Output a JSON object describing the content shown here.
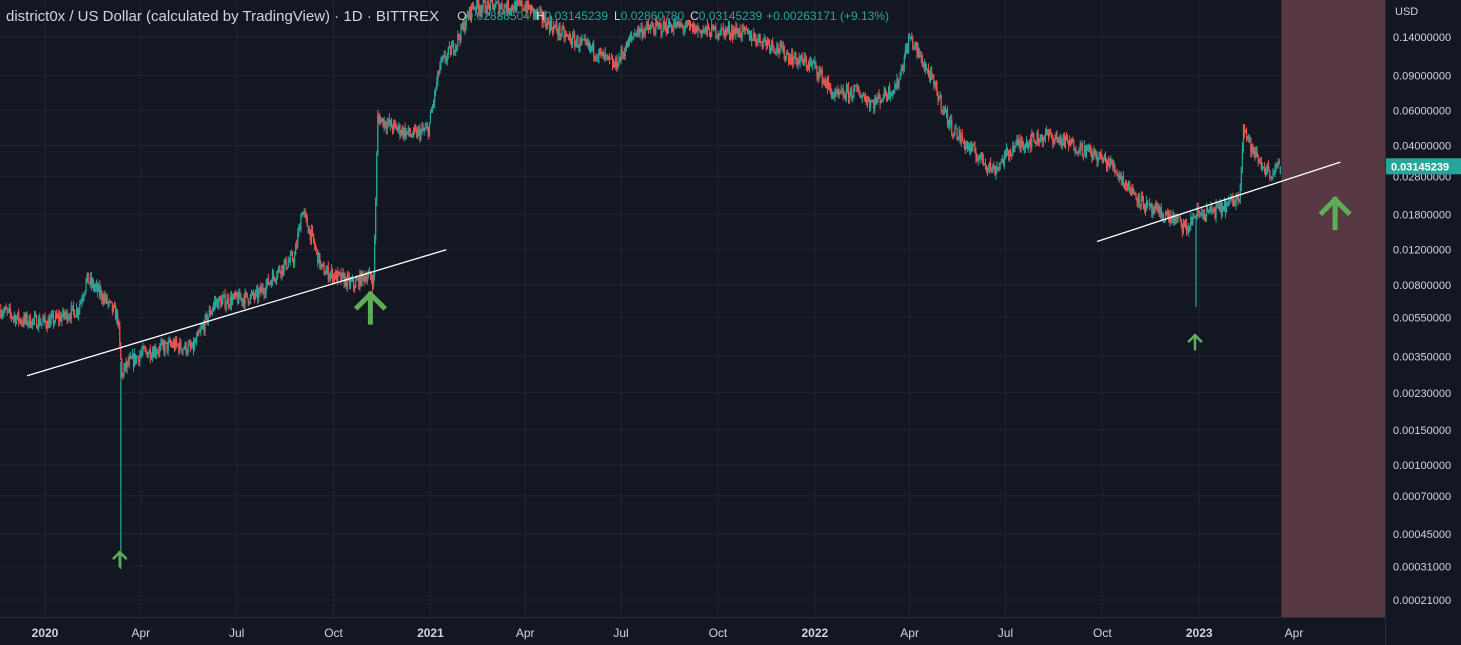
{
  "legend": {
    "symbol": "district0x / US Dollar (calculated by TradingView) · 1D · BITTREX",
    "open_label": "O",
    "open": "0.02888504",
    "high_label": "H",
    "high": "0.03145239",
    "low_label": "L",
    "low": "0.02860780",
    "close_label": "C",
    "close": "0.03145239",
    "change": "+0.00263171 (+9.13%)"
  },
  "price_axis": {
    "currency": "USD",
    "last_price": "0.03145239"
  },
  "colors": {
    "background": "#131722",
    "grid": "#1f2431",
    "up": "#26a69a",
    "down": "#ef5350",
    "trendline": "#ffffff",
    "arrow": "#5fad56",
    "future_zone": "#5c3a45",
    "axis_text": "#d1d4dc"
  },
  "chart_data": {
    "type": "candlestick",
    "title": "district0x / US Dollar (calculated by TradingView) · 1D · BITTREX",
    "ylabel": "USD",
    "yscale": "log",
    "ylim": [
      0.00018,
      0.22
    ],
    "y_ticks": [
      "0.14000000",
      "0.09000000",
      "0.06000000",
      "0.04000000",
      "0.02800000",
      "0.01800000",
      "0.01200000",
      "0.00800000",
      "0.00550000",
      "0.00350000",
      "0.00230000",
      "0.00150000",
      "0.00100000",
      "0.00070000",
      "0.00045000",
      "0.00031000",
      "0.00021000"
    ],
    "x_ticks": [
      {
        "label": "2020",
        "date": "2020-01-01",
        "bold": true
      },
      {
        "label": "Apr",
        "date": "2020-04-01"
      },
      {
        "label": "Jul",
        "date": "2020-07-01"
      },
      {
        "label": "Oct",
        "date": "2020-10-01"
      },
      {
        "label": "2021",
        "date": "2021-01-01",
        "bold": true
      },
      {
        "label": "Apr",
        "date": "2021-04-01"
      },
      {
        "label": "Jul",
        "date": "2021-07-01"
      },
      {
        "label": "Oct",
        "date": "2021-10-01"
      },
      {
        "label": "2022",
        "date": "2022-01-01",
        "bold": true
      },
      {
        "label": "Apr",
        "date": "2022-04-01"
      },
      {
        "label": "Jul",
        "date": "2022-07-01"
      },
      {
        "label": "Oct",
        "date": "2022-10-01"
      },
      {
        "label": "2023",
        "date": "2023-01-01",
        "bold": true
      },
      {
        "label": "Apr",
        "date": "2023-04-01"
      }
    ],
    "last_candle": {
      "date": "2023-03-19",
      "open": 0.02888504,
      "high": 0.03145239,
      "low": 0.0286078,
      "close": 0.03145239
    },
    "price_path": [
      [
        "2019-11-20",
        0.006
      ],
      [
        "2019-12-10",
        0.0053
      ],
      [
        "2020-01-05",
        0.0052
      ],
      [
        "2020-02-01",
        0.006
      ],
      [
        "2020-02-10",
        0.0085
      ],
      [
        "2020-02-25",
        0.007
      ],
      [
        "2020-03-10",
        0.0055
      ],
      [
        "2020-03-14",
        0.0028
      ],
      [
        "2020-03-16",
        0.003
      ],
      [
        "2020-03-20",
        0.0032
      ],
      [
        "2020-04-01",
        0.0036
      ],
      [
        "2020-05-01",
        0.004
      ],
      [
        "2020-05-20",
        0.0038
      ],
      [
        "2020-06-10",
        0.0065
      ],
      [
        "2020-07-01",
        0.0068
      ],
      [
        "2020-07-20",
        0.007
      ],
      [
        "2020-08-10",
        0.0095
      ],
      [
        "2020-08-25",
        0.011
      ],
      [
        "2020-09-01",
        0.019
      ],
      [
        "2020-09-10",
        0.014
      ],
      [
        "2020-09-20",
        0.0095
      ],
      [
        "2020-10-10",
        0.0085
      ],
      [
        "2020-10-20",
        0.008
      ],
      [
        "2020-11-01",
        0.009
      ],
      [
        "2020-11-08",
        0.0085
      ],
      [
        "2020-11-12",
        0.055
      ],
      [
        "2020-11-25",
        0.05
      ],
      [
        "2020-12-15",
        0.045
      ],
      [
        "2020-12-30",
        0.048
      ],
      [
        "2021-01-10",
        0.1
      ],
      [
        "2021-01-25",
        0.13
      ],
      [
        "2021-02-10",
        0.2
      ],
      [
        "2021-03-01",
        0.2
      ],
      [
        "2021-04-01",
        0.2
      ],
      [
        "2021-05-10",
        0.14
      ],
      [
        "2021-06-05",
        0.12
      ],
      [
        "2021-06-25",
        0.1
      ],
      [
        "2021-07-15",
        0.15
      ],
      [
        "2021-08-20",
        0.16
      ],
      [
        "2021-09-20",
        0.15
      ],
      [
        "2021-10-20",
        0.15
      ],
      [
        "2021-11-20",
        0.13
      ],
      [
        "2021-12-10",
        0.11
      ],
      [
        "2022-01-01",
        0.1
      ],
      [
        "2022-01-20",
        0.07
      ],
      [
        "2022-02-10",
        0.075
      ],
      [
        "2022-02-25",
        0.065
      ],
      [
        "2022-03-20",
        0.08
      ],
      [
        "2022-04-01",
        0.14
      ],
      [
        "2022-04-20",
        0.09
      ],
      [
        "2022-05-10",
        0.05
      ],
      [
        "2022-05-25",
        0.04
      ],
      [
        "2022-06-20",
        0.03
      ],
      [
        "2022-07-10",
        0.04
      ],
      [
        "2022-08-10",
        0.045
      ],
      [
        "2022-09-15",
        0.038
      ],
      [
        "2022-10-10",
        0.032
      ],
      [
        "2022-10-25",
        0.025
      ],
      [
        "2022-11-15",
        0.019
      ],
      [
        "2022-12-10",
        0.017
      ],
      [
        "2022-12-20",
        0.015
      ],
      [
        "2022-12-28",
        0.018
      ],
      [
        "2023-01-20",
        0.019
      ],
      [
        "2023-02-08",
        0.022
      ],
      [
        "2023-02-12",
        0.05
      ],
      [
        "2023-02-20",
        0.038
      ],
      [
        "2023-03-01",
        0.032
      ],
      [
        "2023-03-10",
        0.029
      ],
      [
        "2023-03-19",
        0.0315
      ]
    ],
    "wicks": [
      {
        "date": "2020-03-13",
        "low": 0.0003
      },
      {
        "date": "2022-12-29",
        "low": 0.0062
      }
    ],
    "trendlines": [
      {
        "from": {
          "date": "2019-12-15",
          "value": 0.0028
        },
        "to": {
          "date": "2021-01-16",
          "value": 0.012
        }
      },
      {
        "from": {
          "date": "2022-09-26",
          "value": 0.0132
        },
        "to": {
          "date": "2023-05-15",
          "value": 0.033
        }
      }
    ],
    "annotations": [
      {
        "type": "arrow-up",
        "size": "small",
        "date": "2020-03-12",
        "value": 0.00031
      },
      {
        "type": "arrow-up",
        "size": "large",
        "date": "2020-11-05",
        "value": 0.0052
      },
      {
        "type": "arrow-up",
        "size": "small",
        "date": "2022-12-28",
        "value": 0.0038
      },
      {
        "type": "arrow-up",
        "size": "large",
        "date": "2023-05-10",
        "value": 0.0155
      }
    ],
    "shaded_region": {
      "from": "2023-03-20",
      "to": "2023-06-30"
    }
  }
}
